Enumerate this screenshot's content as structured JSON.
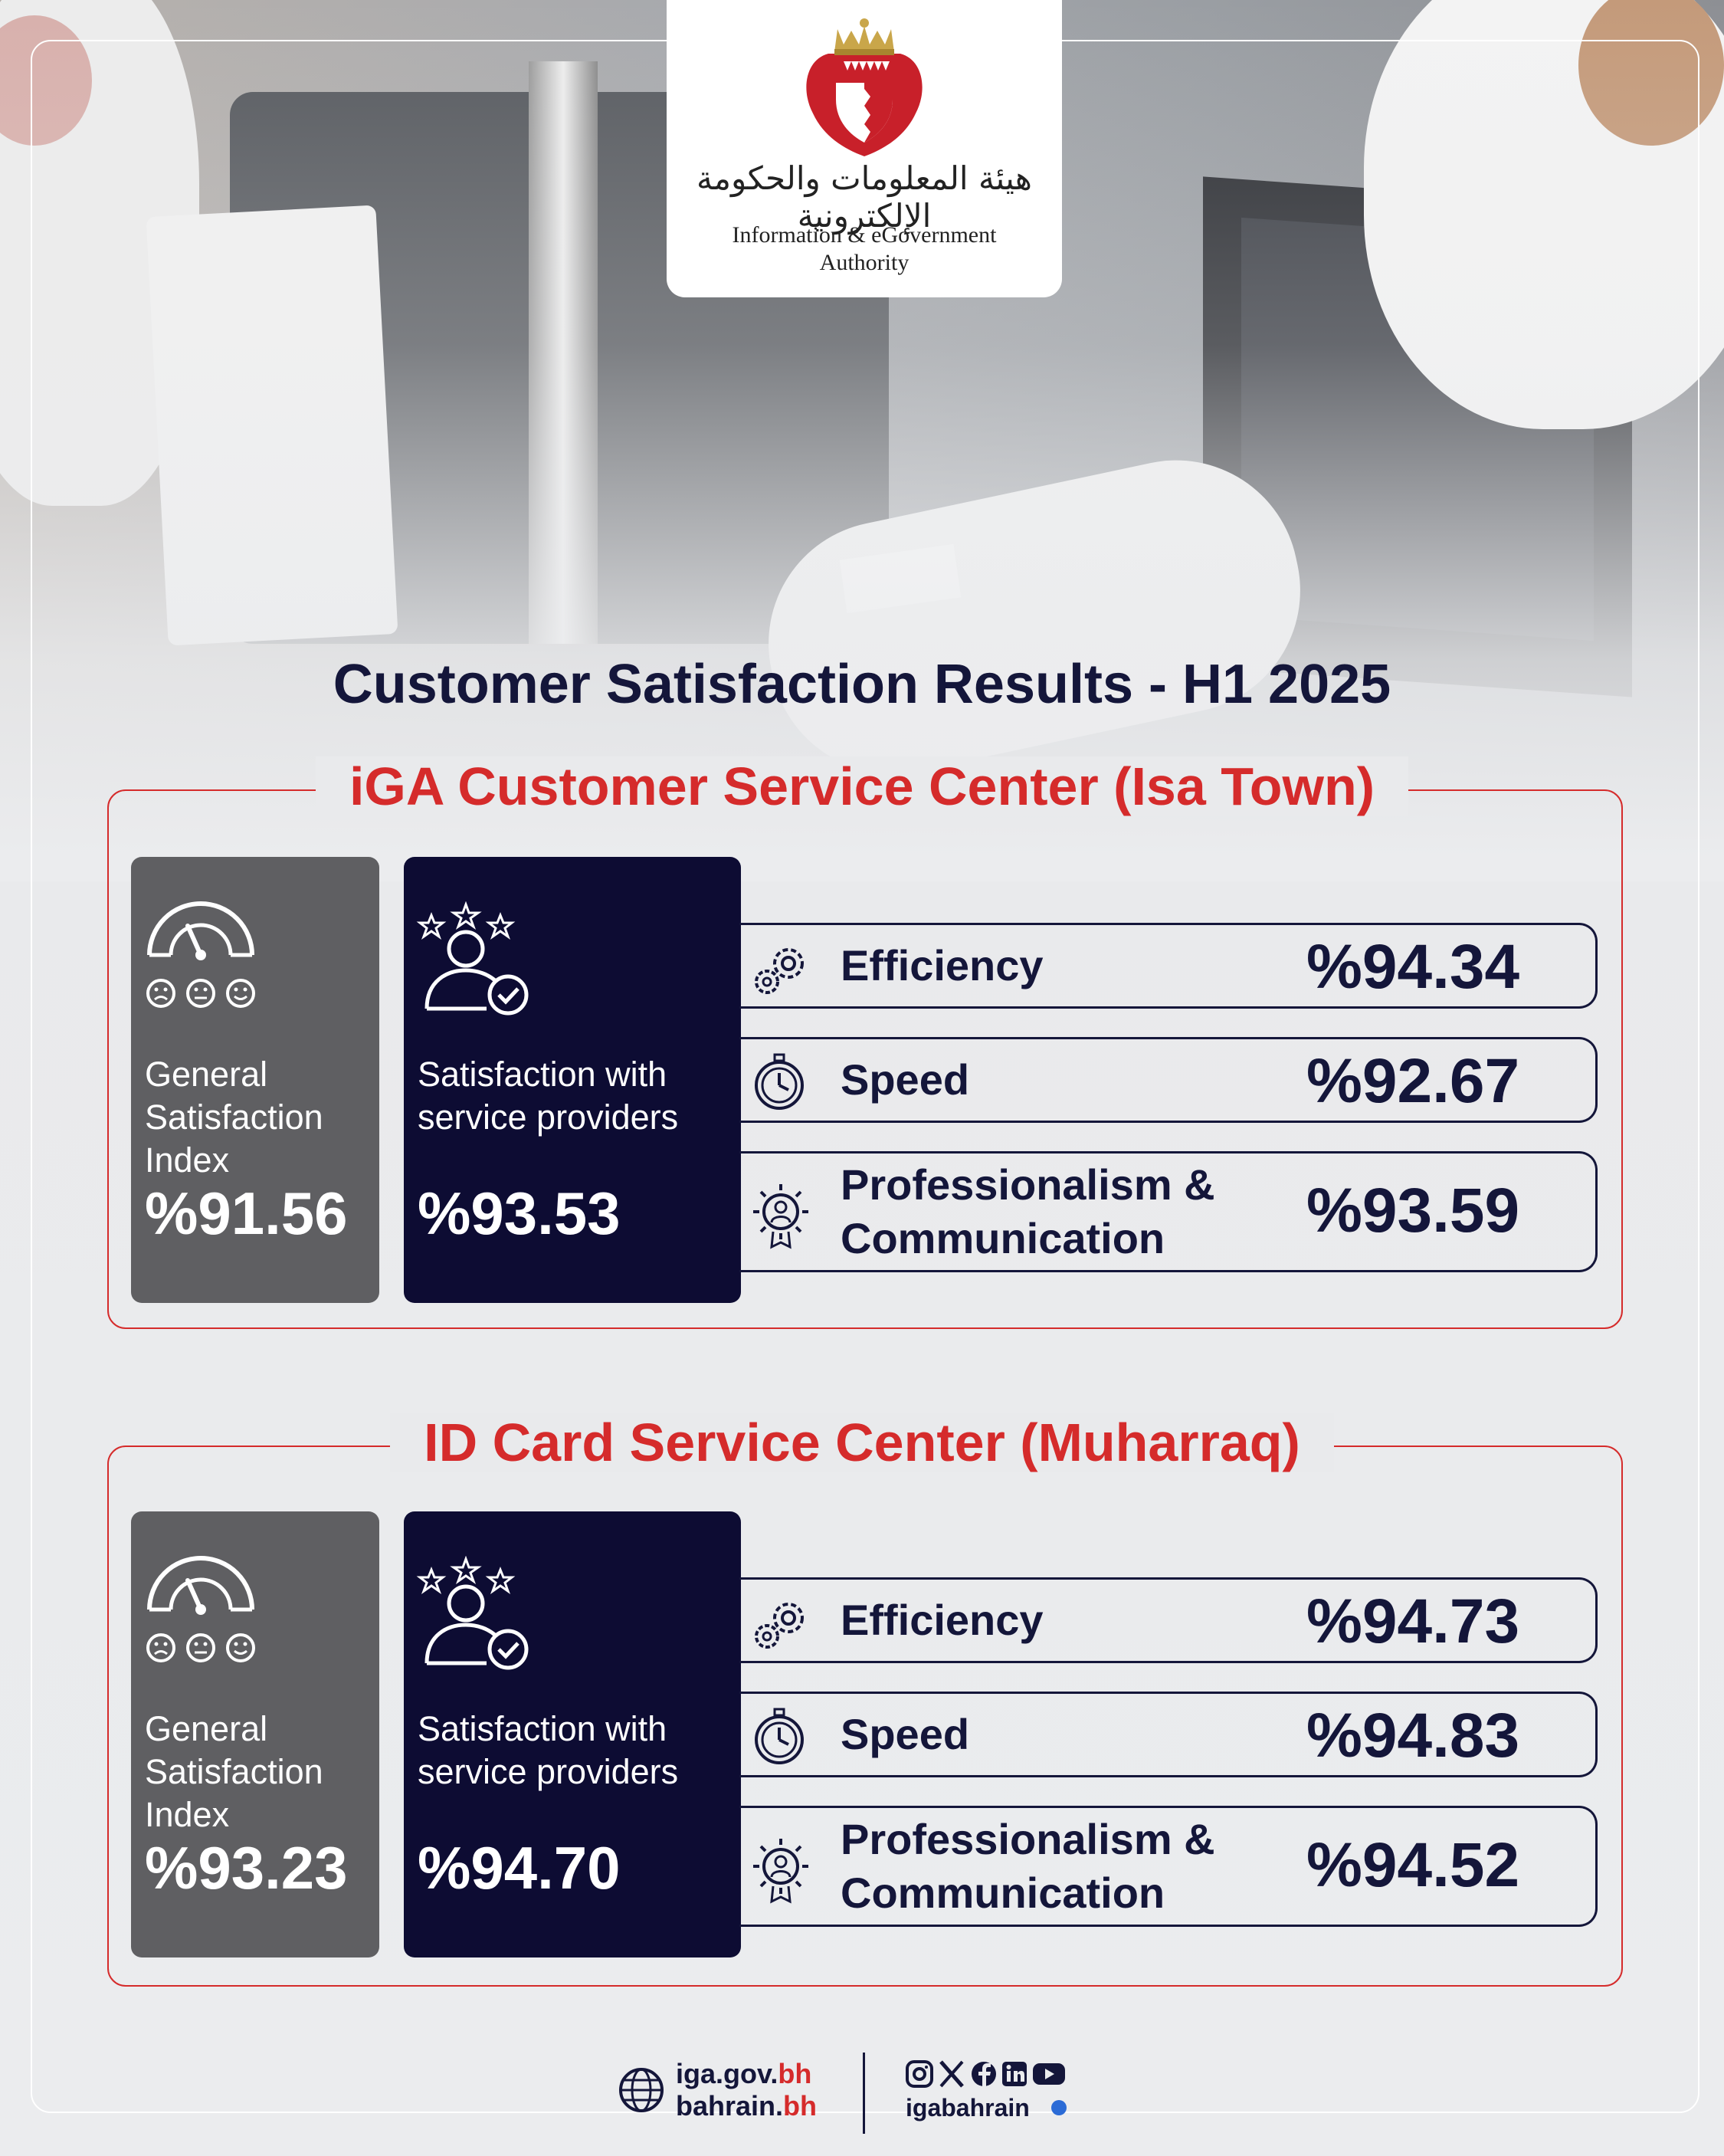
{
  "header": {
    "logo_arabic": "هيئة المعلومات والحكومة الإلكترونية",
    "logo_english_line1": "Information & eGovernment",
    "logo_english_line2": "Authority"
  },
  "title": "Customer Satisfaction Results - H1 2025",
  "sections": [
    {
      "title": "iGA Customer Service Center (Isa Town)",
      "general": {
        "label": "General Satisfaction Index",
        "value": "%91.56"
      },
      "providers": {
        "label": "Satisfaction with service providers",
        "value": "%93.53"
      },
      "metrics": [
        {
          "label": "Efficiency",
          "value": "%94.34",
          "icon": "gears-icon"
        },
        {
          "label": "Speed",
          "value": "%92.67",
          "icon": "stopwatch-icon"
        },
        {
          "label": "Professionalism & Communication",
          "value": "%93.59",
          "icon": "award-person-icon"
        }
      ]
    },
    {
      "title": "ID Card Service Center (Muharraq)",
      "general": {
        "label": "General Satisfaction Index",
        "value": "%93.23"
      },
      "providers": {
        "label": "Satisfaction with service providers",
        "value": "%94.70"
      },
      "metrics": [
        {
          "label": "Efficiency",
          "value": "%94.73",
          "icon": "gears-icon"
        },
        {
          "label": "Speed",
          "value": "%94.83",
          "icon": "stopwatch-icon"
        },
        {
          "label": "Professionalism & Communication",
          "value": "%94.52",
          "icon": "award-person-icon"
        }
      ]
    }
  ],
  "footer": {
    "website_1_main": "iga.gov.",
    "website_1_tld": "bh",
    "website_2_main": "bahrain.",
    "website_2_tld": "bh",
    "social_icons": [
      "instagram-icon",
      "x-icon",
      "facebook-icon",
      "linkedin-icon",
      "youtube-icon"
    ],
    "handle": "igabahrain"
  },
  "colors": {
    "navy": "#0d0c33",
    "gray": "#5f5f62",
    "red": "#d52b2b",
    "background": "#ebecee"
  }
}
